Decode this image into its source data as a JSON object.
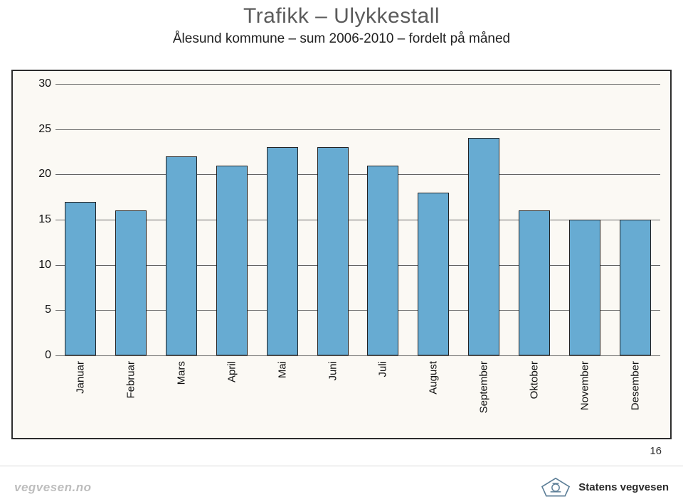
{
  "header": {
    "title": "Trafikk – Ulykkestall",
    "subtitle": "Ålesund kommune – sum 2006-2010 – fordelt på måned"
  },
  "chart": {
    "type": "bar",
    "background_color": "#fbf9f4",
    "border_color": "#2d2d2d",
    "grid_color": "#646464",
    "bar_color": "#67abd2",
    "bar_border_color": "#222222",
    "bar_width_ratio": 0.62,
    "ylim": [
      0,
      30
    ],
    "ytick_step": 5,
    "ytick_fontsize": 16,
    "xtick_fontsize": 15,
    "categories": [
      "Januar",
      "Februar",
      "Mars",
      "April",
      "Mai",
      "Juni",
      "Juli",
      "August",
      "September",
      "Oktober",
      "November",
      "Desember"
    ],
    "values": [
      17,
      16,
      22,
      21,
      23,
      23,
      21,
      18,
      24,
      16,
      15,
      15
    ]
  },
  "page_number": "16",
  "footer": {
    "left": "vegvesen.no",
    "right": "Statens vegvesen",
    "emblem_stroke": "#5b7d96",
    "emblem_fill": "#ffffff"
  }
}
